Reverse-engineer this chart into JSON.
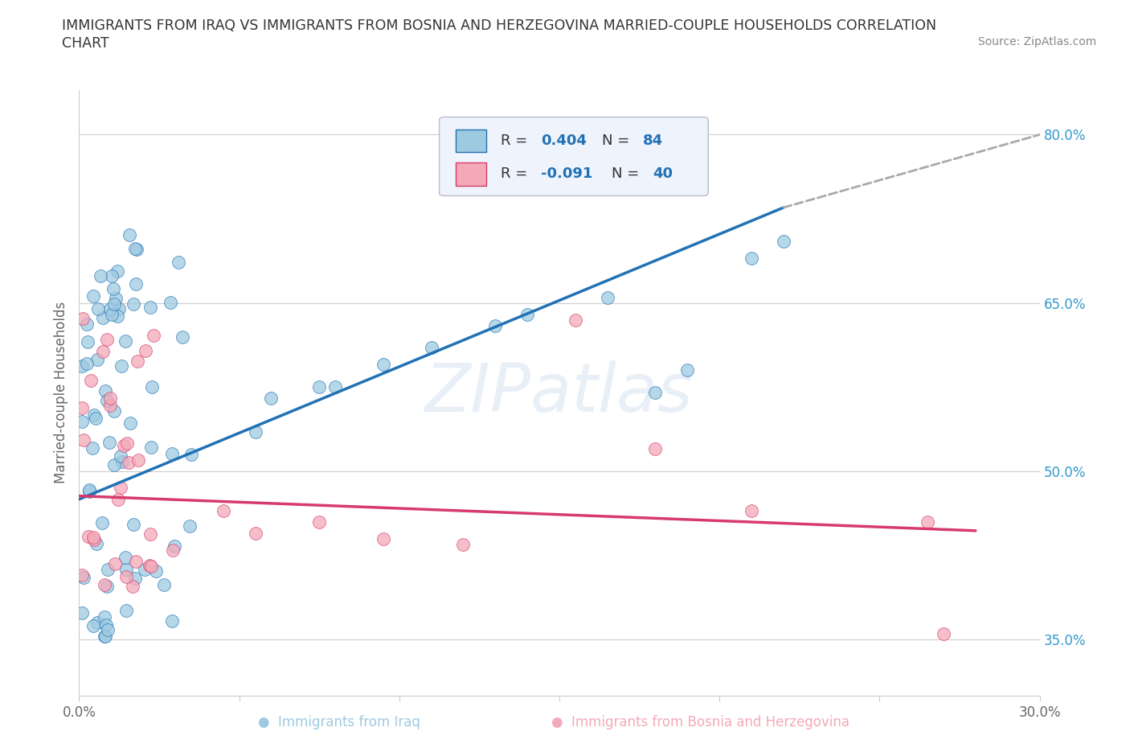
{
  "title_line1": "IMMIGRANTS FROM IRAQ VS IMMIGRANTS FROM BOSNIA AND HERZEGOVINA MARRIED-COUPLE HOUSEHOLDS CORRELATION",
  "title_line2": "CHART",
  "source": "Source: ZipAtlas.com",
  "xlabel_blue": "Immigrants from Iraq",
  "xlabel_pink": "Immigrants from Bosnia and Herzegovina",
  "ylabel": "Married-couple Households",
  "xlim": [
    0.0,
    0.3
  ],
  "ylim": [
    0.3,
    0.84
  ],
  "ytick_vals": [
    0.35,
    0.5,
    0.65,
    0.8
  ],
  "ytick_labels": [
    "35.0%",
    "50.0%",
    "65.0%",
    "80.0%"
  ],
  "color_blue": "#9ecae1",
  "color_pink": "#f4a9b8",
  "trend_blue": "#2171b5",
  "trend_pink": "#d63a6e",
  "trend_dashed": "#aaaaaa",
  "R_blue": 0.404,
  "N_blue": 84,
  "R_pink": -0.091,
  "N_pink": 40,
  "blue_trend_x0": 0.0,
  "blue_trend_y0": 0.475,
  "blue_trend_x1": 0.22,
  "blue_trend_y1": 0.735,
  "blue_trend_x2": 0.3,
  "blue_trend_y2": 0.8,
  "pink_trend_x0": 0.0,
  "pink_trend_y0": 0.478,
  "pink_trend_x1": 0.28,
  "pink_trend_y1": 0.447
}
